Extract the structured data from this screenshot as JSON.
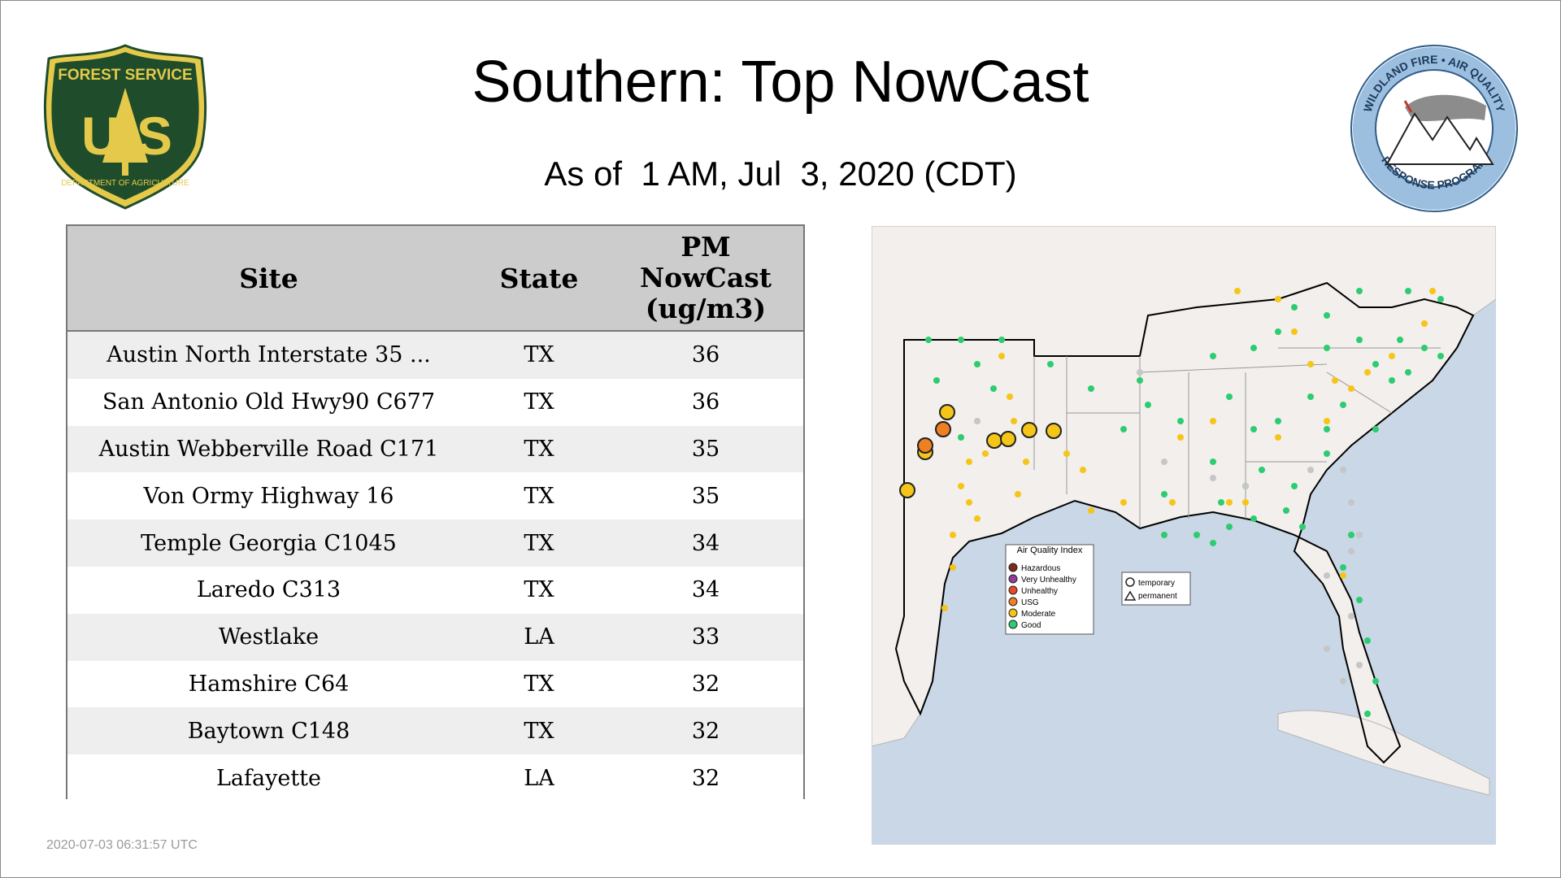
{
  "page": {
    "title": "Southern: Top NowCast",
    "subtitle": "As of  1 AM, Jul  3, 2020 (CDT)",
    "timestamp": "2020-07-03 06:31:57 UTC"
  },
  "logos": {
    "left": {
      "name": "forest-service-shield",
      "text_top": "FOREST SERVICE",
      "text_letters_left": "U",
      "text_letters_right": "S",
      "text_bottom": "DEPARTMENT OF AGRICULTURE",
      "colors": {
        "green": "#1f4d2b",
        "gold": "#e5c94a"
      }
    },
    "right": {
      "name": "wildland-fire-air-quality-seal",
      "text_top": "WILDLAND FIRE • AIR QUALITY",
      "text_bottom": "RESPONSE PROGRAM",
      "colors": {
        "ring": "#9cbfe0",
        "outline": "#2f5d8a"
      }
    }
  },
  "table": {
    "headers": {
      "site": "Site",
      "state": "State",
      "pm": [
        "PM",
        "NowCast",
        "(ug/m3)"
      ]
    },
    "rows": [
      {
        "site": "Austin North Interstate 35 ...",
        "state": "TX",
        "pm": "36"
      },
      {
        "site": "San Antonio Old Hwy90 C677",
        "state": "TX",
        "pm": "36"
      },
      {
        "site": "Austin Webberville Road C171",
        "state": "TX",
        "pm": "35"
      },
      {
        "site": "Von Ormy Highway 16",
        "state": "TX",
        "pm": "35"
      },
      {
        "site": "Temple Georgia C1045",
        "state": "TX",
        "pm": "34"
      },
      {
        "site": "Laredo C313",
        "state": "TX",
        "pm": "34"
      },
      {
        "site": "Westlake",
        "state": "LA",
        "pm": "33"
      },
      {
        "site": "Hamshire C64",
        "state": "TX",
        "pm": "32"
      },
      {
        "site": "Baytown C148",
        "state": "TX",
        "pm": "32"
      },
      {
        "site": "Lafayette",
        "state": "LA",
        "pm": "32"
      }
    ]
  },
  "map": {
    "legend": {
      "title": "Air Quality Index",
      "items": [
        {
          "label": "Hazardous",
          "color": "#7e2a1a"
        },
        {
          "label": "Very Unhealthy",
          "color": "#8f3f97"
        },
        {
          "label": "Unhealthy",
          "color": "#e8492b"
        },
        {
          "label": "USG",
          "color": "#ee7f23"
        },
        {
          "label": "Moderate",
          "color": "#f5c518"
        },
        {
          "label": "Good",
          "color": "#2ecc71"
        }
      ]
    },
    "shape_legend": {
      "temporary": "temporary",
      "permanent": "permanent"
    },
    "colors": {
      "water": "#c9d7e6",
      "land": "#f2efec",
      "border": "#9a9a9a",
      "region": "#000000",
      "nodata": "#c6c6c6"
    }
  }
}
